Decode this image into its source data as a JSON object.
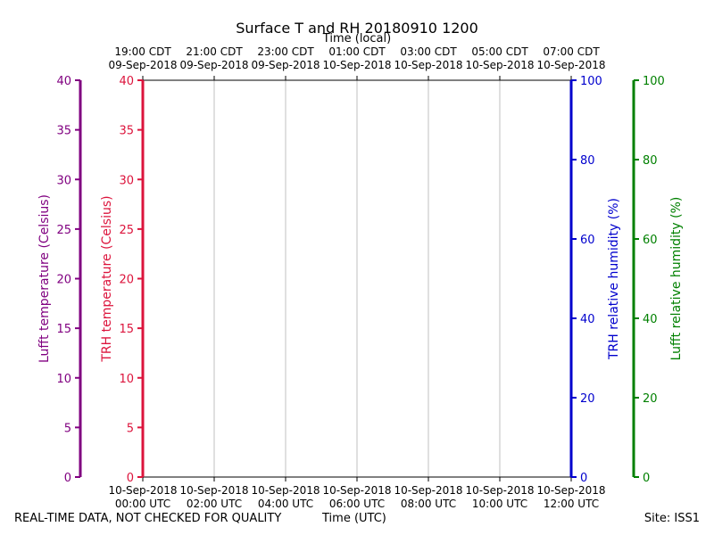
{
  "chart_data": {
    "type": "line",
    "title": "Surface T and RH 20180910 1200",
    "top_axis_label": "Time (local)",
    "xlabel": "Time (UTC)",
    "x_ticks_utc": [
      {
        "date": "10-Sep-2018",
        "time": "00:00 UTC"
      },
      {
        "date": "10-Sep-2018",
        "time": "02:00 UTC"
      },
      {
        "date": "10-Sep-2018",
        "time": "04:00 UTC"
      },
      {
        "date": "10-Sep-2018",
        "time": "06:00 UTC"
      },
      {
        "date": "10-Sep-2018",
        "time": "08:00 UTC"
      },
      {
        "date": "10-Sep-2018",
        "time": "10:00 UTC"
      },
      {
        "date": "10-Sep-2018",
        "time": "12:00 UTC"
      }
    ],
    "x_ticks_local": [
      {
        "time": "19:00 CDT",
        "date": "09-Sep-2018"
      },
      {
        "time": "21:00 CDT",
        "date": "09-Sep-2018"
      },
      {
        "time": "23:00 CDT",
        "date": "09-Sep-2018"
      },
      {
        "time": "01:00 CDT",
        "date": "10-Sep-2018"
      },
      {
        "time": "03:00 CDT",
        "date": "10-Sep-2018"
      },
      {
        "time": "05:00 CDT",
        "date": "10-Sep-2018"
      },
      {
        "time": "07:00 CDT",
        "date": "10-Sep-2018"
      }
    ],
    "xlim": [
      "10-Sep-2018 00:00 UTC",
      "10-Sep-2018 12:00 UTC"
    ],
    "grid": true,
    "axes": [
      {
        "id": "lufft_temp",
        "label": "Lufft temperature (Celsius)",
        "side": "left-outer",
        "color": "#800080",
        "ylim": [
          0,
          40
        ],
        "ticks": [
          0,
          5,
          10,
          15,
          20,
          25,
          30,
          35,
          40
        ]
      },
      {
        "id": "trh_temp",
        "label": "TRH temperature (Celsius)",
        "side": "left-inner",
        "color": "#dc143c",
        "ylim": [
          0,
          40
        ],
        "ticks": [
          0,
          5,
          10,
          15,
          20,
          25,
          30,
          35,
          40
        ]
      },
      {
        "id": "trh_rh",
        "label": "TRH relative humidity (%)",
        "side": "right-inner",
        "color": "#0000cd",
        "ylim": [
          0,
          100
        ],
        "ticks": [
          0,
          20,
          40,
          60,
          80,
          100
        ]
      },
      {
        "id": "lufft_rh",
        "label": "Lufft relative humidity (%)",
        "side": "right-outer",
        "color": "#008000",
        "ylim": [
          0,
          100
        ],
        "ticks": [
          0,
          20,
          40,
          60,
          80,
          100
        ]
      }
    ],
    "series": []
  },
  "footer": {
    "left": "REAL-TIME DATA, NOT CHECKED FOR QUALITY",
    "center": "Time (UTC)",
    "right": "Site: ISS1"
  }
}
